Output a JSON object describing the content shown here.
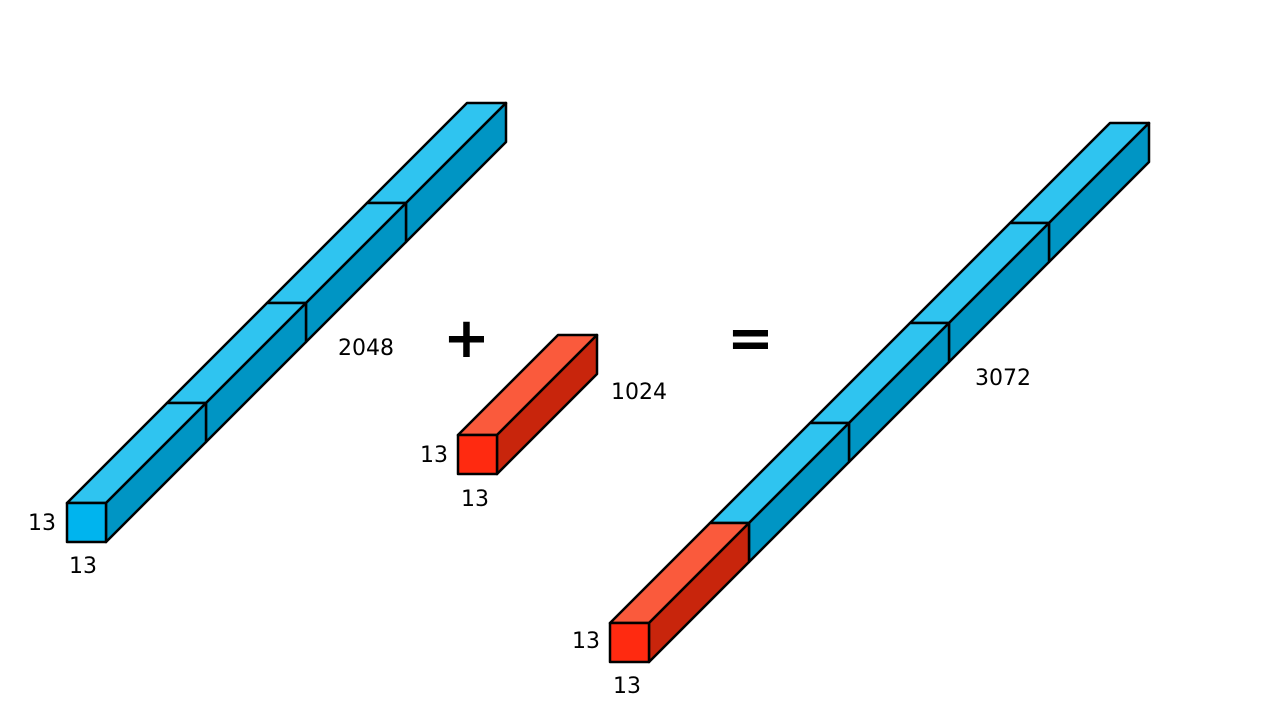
{
  "colors": {
    "blue": {
      "front": "#00b4ee",
      "top": "#2fc4f0",
      "side": "#0095c4"
    },
    "red": {
      "front": "#ff2a10",
      "top": "#fa5a3c",
      "side": "#c8250c"
    },
    "outline": "#000000",
    "background": "#ffffff"
  },
  "left_tensor": {
    "color": "blue",
    "segments": [
      "blue",
      "blue",
      "blue",
      "blue"
    ],
    "height_label": "13",
    "width_label": "13",
    "length_label": "2048"
  },
  "plus_symbol": "+",
  "middle_tensor": {
    "color": "red",
    "segments": [
      "red"
    ],
    "height_label": "13",
    "width_label": "13",
    "length_label": "1024"
  },
  "equals_symbol": "=",
  "result_tensor": {
    "segments": [
      "red",
      "blue",
      "blue",
      "blue",
      "blue"
    ],
    "height_label": "13",
    "width_label": "13",
    "length_label": "3072"
  }
}
